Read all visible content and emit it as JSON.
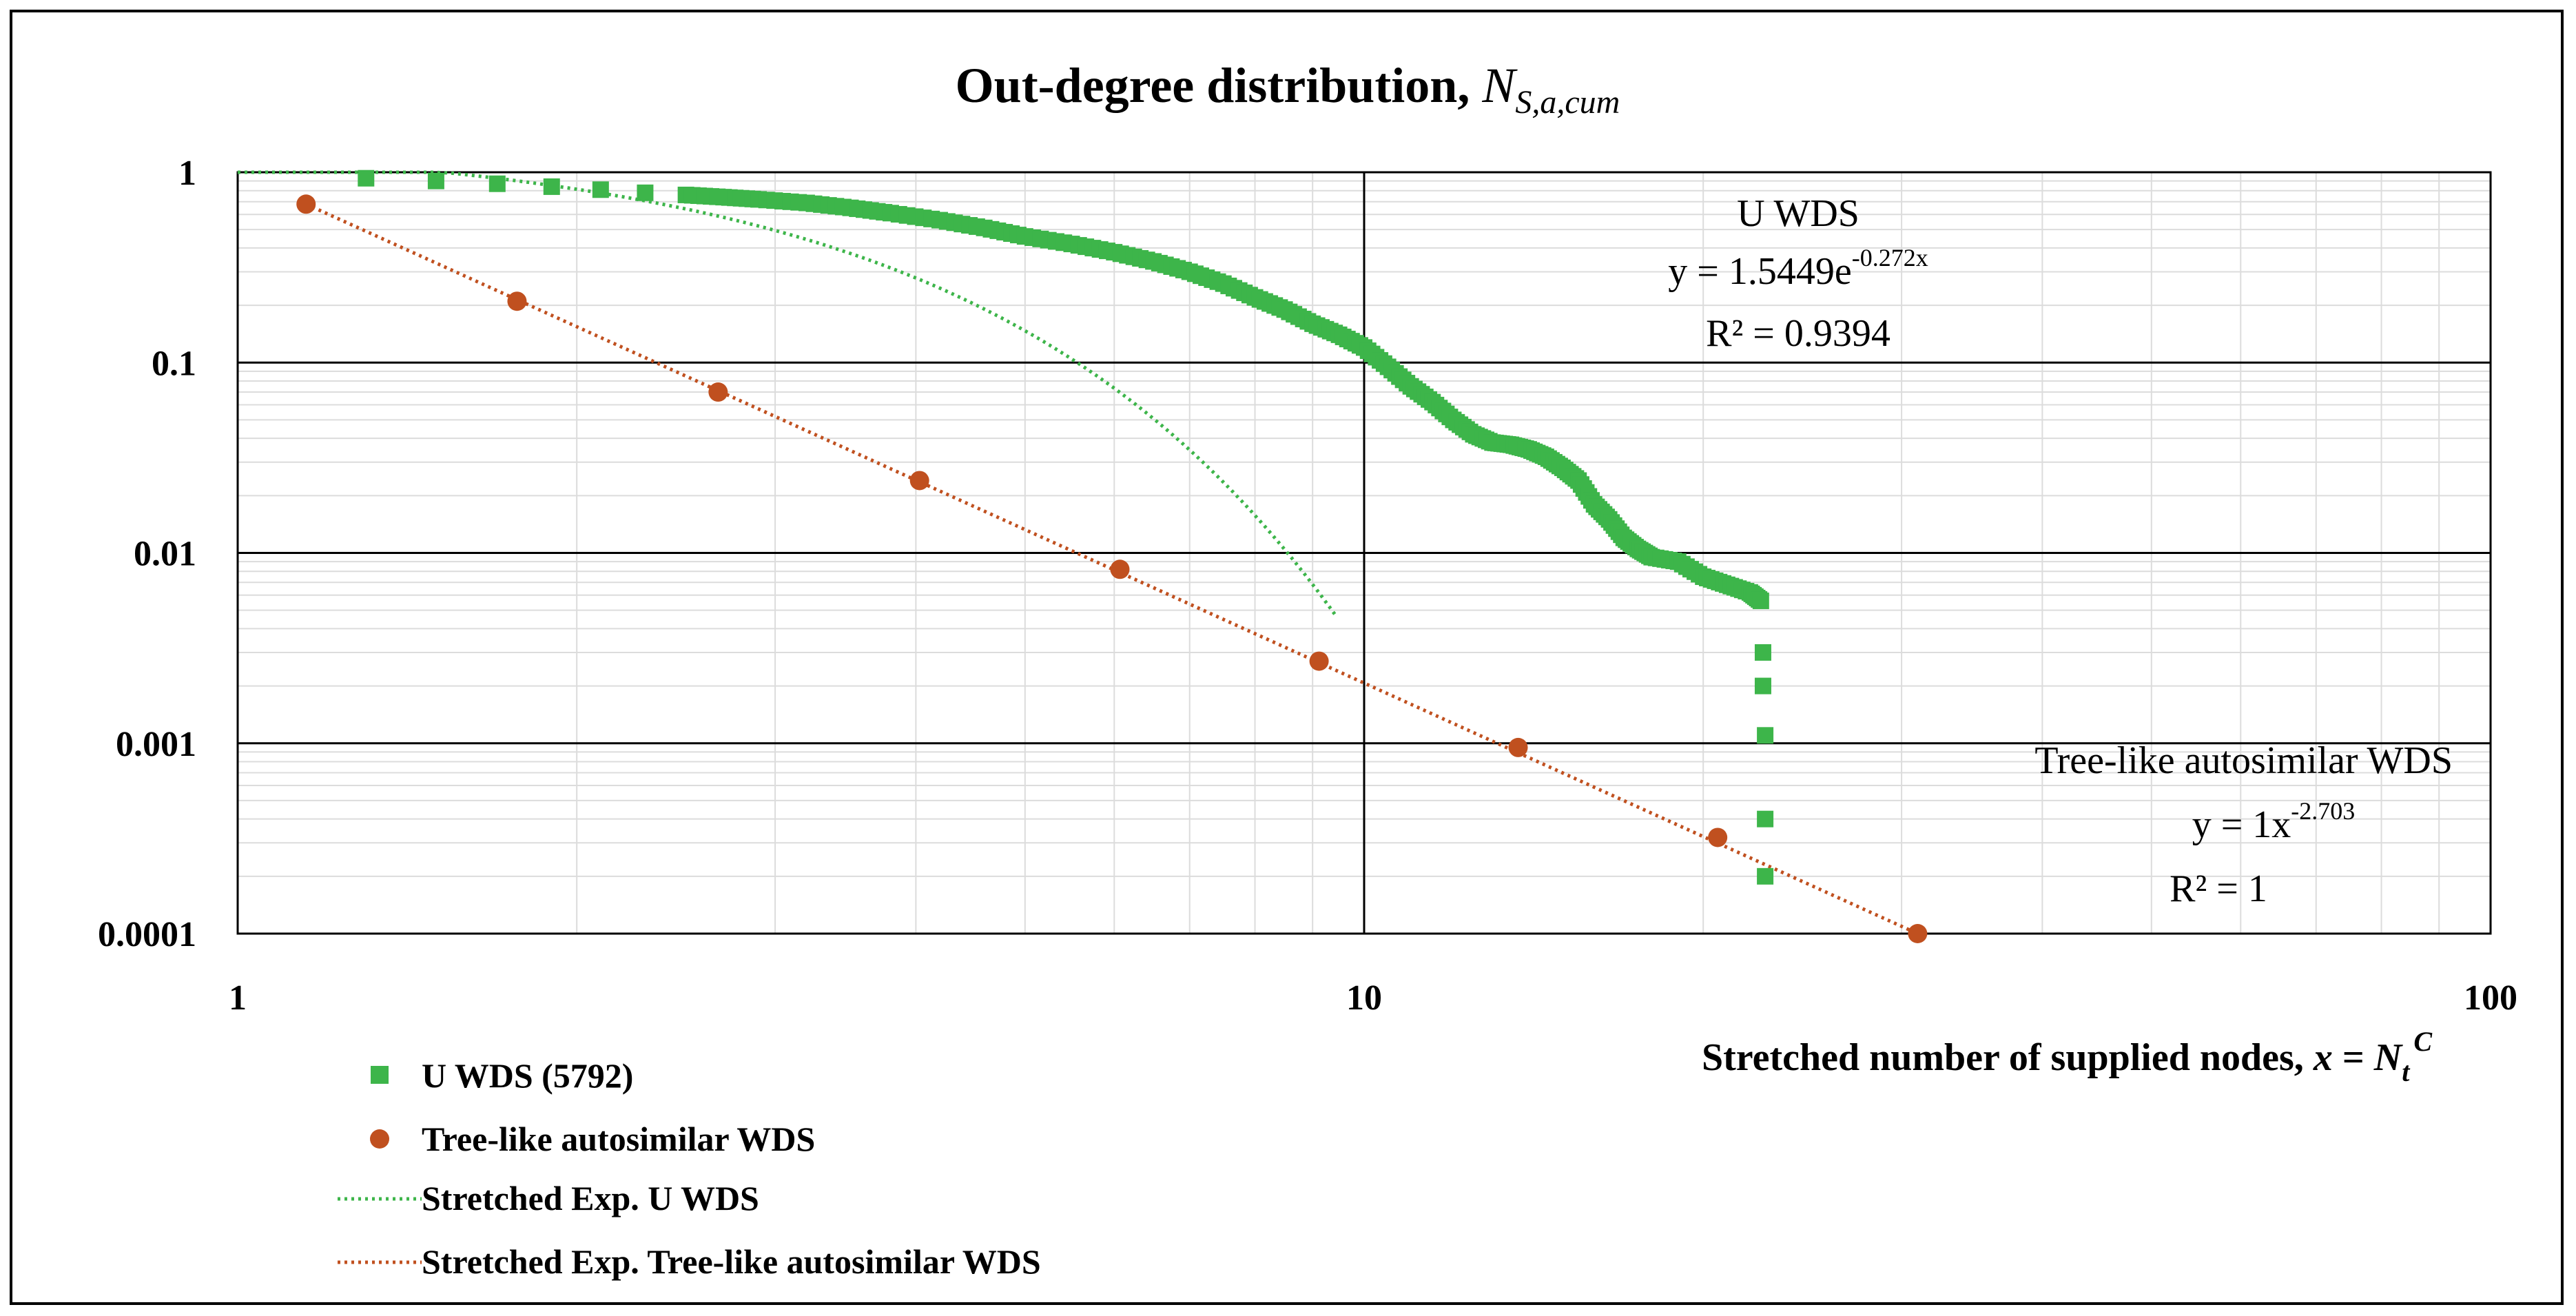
{
  "chart_data": {
    "type": "scatter",
    "title": "Out-degree distribution, ",
    "title_math": {
      "base": "N",
      "sub": "S,a,cum"
    },
    "x_scale": "log",
    "y_scale": "log",
    "xlim": [
      1,
      100
    ],
    "ylim": [
      0.0001,
      1
    ],
    "x_ticks": [
      "1",
      "10",
      "100"
    ],
    "y_ticks": [
      "1",
      "0.1",
      "0.01",
      "0.001",
      "0.0001"
    ],
    "xlabel": "Stretched number of supplied nodes, ",
    "xlabel_math": {
      "var": "x",
      "eq": " = ",
      "base": "N",
      "sub": "t",
      "sup": "C"
    },
    "ylabel": "",
    "gridlines": true,
    "legend_position": "bottom-left",
    "series": [
      {
        "name": "U WDS (5792)",
        "marker": "square",
        "color": "#3db54a",
        "x": [
          1.3,
          1.5,
          1.7,
          1.9,
          2.1,
          2.3,
          2.5,
          2.7,
          2.9,
          3.2,
          3.5,
          3.8,
          4.2,
          4.6,
          5.0,
          5.5,
          6.0,
          6.5,
          7.0,
          7.5,
          8.0,
          8.5,
          9.0,
          9.5,
          10.0,
          10.5,
          11.0,
          11.5,
          12.0,
          12.5,
          13.0,
          13.5,
          14.0,
          14.5,
          15.0,
          15.5,
          16.0,
          16.5,
          17.0,
          17.5,
          18.0,
          19.0,
          20.0,
          21.0,
          22.0,
          22.5,
          22.6,
          22.6,
          22.7,
          22.7,
          22.7
        ],
        "y": [
          0.93,
          0.9,
          0.87,
          0.84,
          0.81,
          0.78,
          0.76,
          0.74,
          0.72,
          0.69,
          0.65,
          0.61,
          0.56,
          0.51,
          0.46,
          0.42,
          0.38,
          0.34,
          0.3,
          0.26,
          0.22,
          0.19,
          0.16,
          0.14,
          0.12,
          0.095,
          0.075,
          0.062,
          0.05,
          0.042,
          0.038,
          0.037,
          0.035,
          0.032,
          0.028,
          0.024,
          0.018,
          0.015,
          0.012,
          0.0105,
          0.0095,
          0.009,
          0.0075,
          0.0068,
          0.0062,
          0.0056,
          0.003,
          0.002,
          0.0011,
          0.0004,
          0.0002
        ]
      },
      {
        "name": "Tree-like autosimilar WDS",
        "marker": "circle",
        "color": "#c0501f",
        "x": [
          1.15,
          1.77,
          2.67,
          4.03,
          6.07,
          9.12,
          13.7,
          20.6,
          31.0
        ],
        "y": [
          0.68,
          0.21,
          0.07,
          0.024,
          0.0082,
          0.0027,
          0.00095,
          0.00032,
          0.0001
        ]
      }
    ],
    "trendlines": [
      {
        "name": "Stretched Exp. U WDS",
        "color": "#3db54a",
        "style": "dotted"
      },
      {
        "name": "Stretched Exp. Tree-like autosimilar WDS",
        "color": "#c0501f",
        "style": "dotted"
      }
    ],
    "annotations": [
      {
        "name": "U WDS",
        "equation": "y = 1.5449e",
        "exponent": "-0.272x",
        "r2": "R² = 0.9394"
      },
      {
        "name": "Tree-like autosimilar WDS",
        "equation": "y = 1x",
        "exponent": "-2.703",
        "r2": "R² = 1"
      }
    ]
  }
}
